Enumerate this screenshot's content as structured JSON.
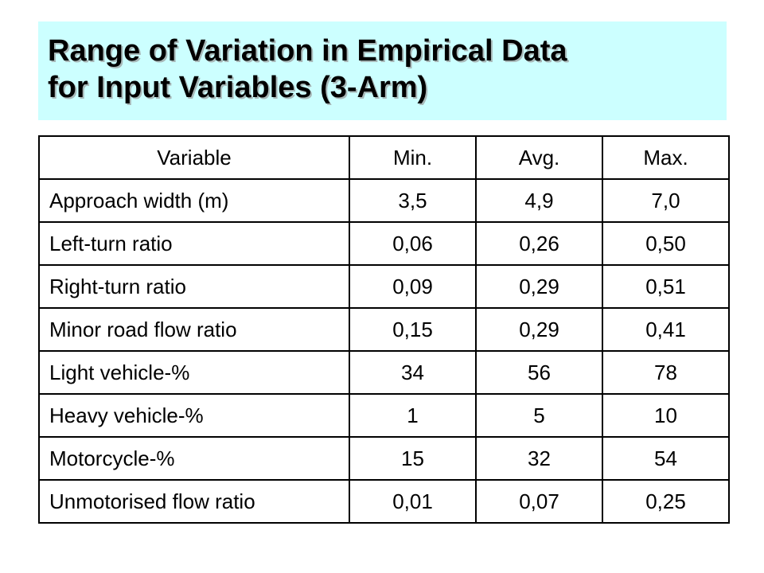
{
  "slide": {
    "title_line1": "Range of Variation in Empirical Data",
    "title_line2": "for Input Variables (3-Arm)",
    "title_background": "#ccffff"
  },
  "table": {
    "headers": [
      "Variable",
      "Min.",
      "Avg.",
      "Max."
    ],
    "rows": [
      {
        "variable": "Approach width (m)",
        "min": "3,5",
        "avg": "4,9",
        "max": "7,0"
      },
      {
        "variable": "Left-turn ratio",
        "min": "0,06",
        "avg": "0,26",
        "max": "0,50"
      },
      {
        "variable": "Right-turn ratio",
        "min": "0,09",
        "avg": "0,29",
        "max": "0,51"
      },
      {
        "variable": "Minor road flow ratio",
        "min": "0,15",
        "avg": "0,29",
        "max": "0,41"
      },
      {
        "variable": "Light vehicle-%",
        "min": "34",
        "avg": "56",
        "max": "78"
      },
      {
        "variable": "Heavy vehicle-%",
        "min": "1",
        "avg": "5",
        "max": "10"
      },
      {
        "variable": "Motorcycle-%",
        "min": "15",
        "avg": "32",
        "max": "54"
      },
      {
        "variable": "Unmotorised flow ratio",
        "min": "0,01",
        "avg": "0,07",
        "max": "0,25"
      }
    ]
  }
}
